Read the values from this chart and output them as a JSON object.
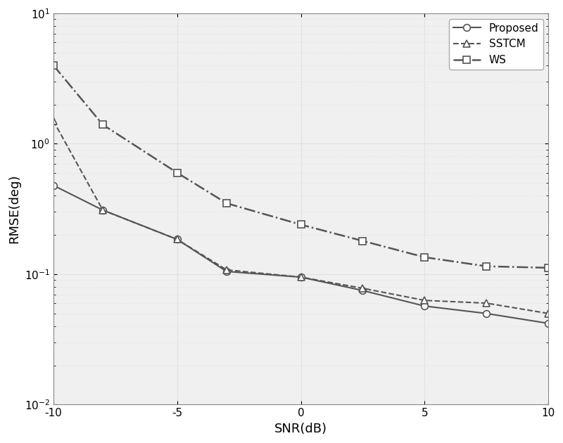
{
  "snr": [
    -10,
    -8,
    -5,
    -3,
    0,
    2.5,
    5,
    7.5,
    10
  ],
  "proposed": [
    0.48,
    0.31,
    0.185,
    0.105,
    0.095,
    0.075,
    0.057,
    0.05,
    0.042
  ],
  "sstcm": [
    1.5,
    0.31,
    0.185,
    0.108,
    0.095,
    0.078,
    0.063,
    0.06,
    0.05
  ],
  "ws": [
    4.0,
    1.4,
    0.6,
    0.35,
    0.24,
    0.18,
    0.135,
    0.115,
    0.112
  ],
  "line_color": "#555555",
  "xlabel": "SNR(dB)",
  "ylabel": "RMSE(deg)",
  "xlim": [
    -10,
    10
  ],
  "ylim_bottom": 0.01,
  "ylim_top": 10,
  "xticks": [
    -10,
    -5,
    0,
    5,
    10
  ],
  "legend_labels": [
    "Proposed",
    "SSTCM",
    "WS"
  ],
  "bg_color": "#f0f0f0",
  "grid_color": "#ffffff",
  "minor_grid_color": "#e8e8e8",
  "title_fontsize": 12,
  "axis_fontsize": 13,
  "tick_fontsize": 11,
  "legend_fontsize": 11
}
